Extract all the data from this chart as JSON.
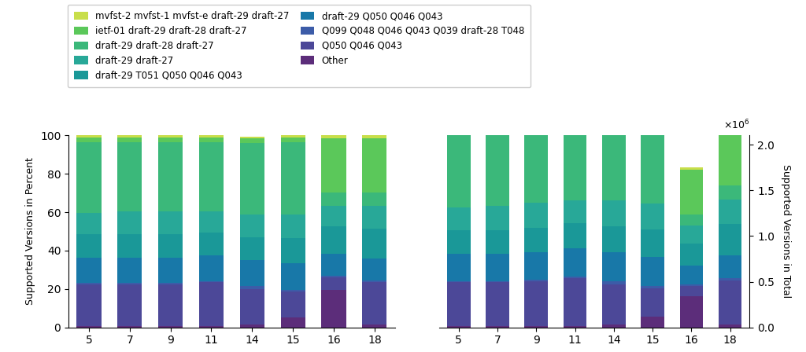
{
  "weeks": [
    5,
    7,
    9,
    11,
    14,
    15,
    16,
    18
  ],
  "legend_labels": [
    "mvfst-2 mvfst-1 mvfst-e draft-29 draft-27",
    "ietf-01 draft-29 draft-28 draft-27",
    "draft-29 draft-28 draft-27",
    "draft-29 draft-27",
    "draft-29 T051 Q050 Q046 Q043",
    "draft-29 Q050 Q046 Q043",
    "Q099 Q048 Q046 Q043 Q039 draft-28 T048",
    "Q050 Q046 Q043",
    "Other"
  ],
  "legend_colors": [
    "#c8de4a",
    "#5bc85a",
    "#3bb87a",
    "#28a898",
    "#1a9898",
    "#1878a8",
    "#3c5ca8",
    "#4c4898",
    "#5c2d7a"
  ],
  "stack_order_labels": [
    "Other",
    "Q050 Q046 Q043",
    "Q099 Q048 Q046 Q043 Q039 draft-28 T048",
    "draft-29 Q050 Q046 Q043",
    "draft-29 T051 Q050 Q046 Q043",
    "draft-29 draft-27",
    "draft-29 draft-28 draft-27",
    "ietf-01 draft-29 draft-28 draft-27",
    "mvfst-2 mvfst-1 mvfst-e draft-29 draft-27"
  ],
  "stack_colors": [
    "#5c2d7a",
    "#4c4898",
    "#3c5ca8",
    "#1878a8",
    "#1a9898",
    "#28a898",
    "#3bb87a",
    "#5bc85a",
    "#c8de4a"
  ],
  "pct": {
    "5": [
      0.5,
      22.0,
      0.5,
      13.5,
      12.0,
      11.0,
      37.0,
      2.5,
      1.0
    ],
    "7": [
      0.5,
      22.0,
      0.5,
      13.5,
      12.0,
      12.0,
      36.0,
      2.5,
      1.0
    ],
    "9": [
      0.5,
      22.0,
      0.5,
      13.5,
      12.0,
      12.0,
      36.0,
      2.5,
      1.0
    ],
    "11": [
      0.5,
      23.0,
      0.5,
      13.5,
      12.0,
      11.0,
      36.0,
      2.5,
      1.0
    ],
    "14": [
      1.5,
      18.5,
      1.5,
      13.5,
      12.0,
      12.0,
      37.0,
      2.5,
      1.0
    ],
    "15": [
      5.0,
      13.5,
      1.0,
      14.0,
      13.0,
      12.5,
      37.5,
      2.5,
      1.0
    ],
    "16": [
      19.5,
      6.5,
      1.0,
      11.5,
      14.0,
      11.0,
      7.0,
      28.0,
      1.5
    ],
    "18": [
      1.5,
      22.0,
      1.0,
      11.5,
      15.5,
      12.0,
      7.0,
      28.0,
      1.5
    ]
  },
  "tot": {
    "5": [
      11000,
      484000,
      11000,
      297000,
      264000,
      242000,
      810000,
      55000,
      22000
    ],
    "7": [
      11000,
      484000,
      11000,
      297000,
      264000,
      264000,
      792000,
      55000,
      22000
    ],
    "9": [
      11250,
      495000,
      11250,
      303750,
      270000,
      270000,
      810000,
      56250,
      22500
    ],
    "11": [
      11500,
      529000,
      11500,
      310500,
      276000,
      253000,
      828000,
      57500,
      23000
    ],
    "14": [
      35250,
      434750,
      35250,
      317250,
      282000,
      282000,
      869500,
      58750,
      23500
    ],
    "15": [
      115000,
      310500,
      23000,
      322000,
      299000,
      287500,
      862500,
      57500,
      23000
    ],
    "16": [
      341250,
      113750,
      17500,
      201250,
      245000,
      192500,
      122500,
      490000,
      26250
    ],
    "18": [
      33000,
      484000,
      22000,
      253000,
      341000,
      264000,
      154000,
      616000,
      33000
    ]
  },
  "ylabel_left": "Supported Versions in Percent",
  "ylabel_right": "Supported Versions in Total"
}
